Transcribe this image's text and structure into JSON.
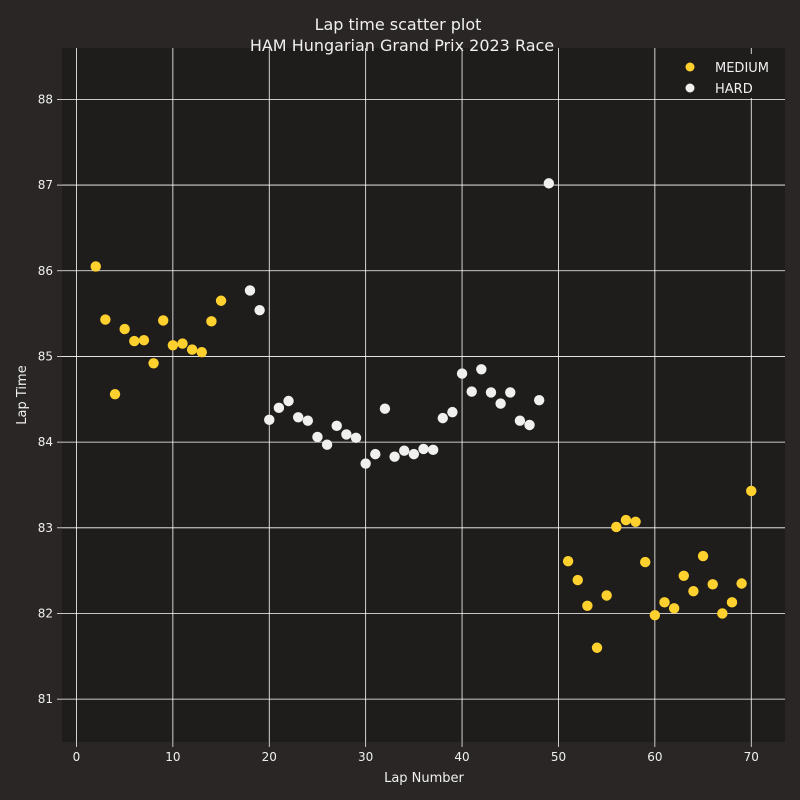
{
  "colors": {
    "figure_bg": "#292625",
    "plot_bg": "#1e1d1c",
    "medium": "#ffd12e",
    "hard": "#f0f0ee",
    "text": "#f0f0f0",
    "grid": "#ffffff"
  },
  "chart_data": {
    "type": "scatter",
    "title": "Lap time scatter plot",
    "subtitle": "HAM Hungarian Grand Prix 2023 Race",
    "xlabel": "Lap Number",
    "ylabel": "Lap Time",
    "xlim": [
      -1.5,
      73.5
    ],
    "ylim": [
      80.5,
      88.6
    ],
    "xticks": [
      0,
      10,
      20,
      30,
      40,
      50,
      60,
      70
    ],
    "yticks": [
      81,
      82,
      83,
      84,
      85,
      86,
      87,
      88
    ],
    "grid": true,
    "legend_position": "top-right",
    "series": [
      {
        "name": "MEDIUM",
        "color": "#ffd12e",
        "x": [
          2,
          3,
          4,
          5,
          6,
          7,
          8,
          9,
          10,
          11,
          12,
          13,
          14,
          15,
          51,
          52,
          53,
          54,
          55,
          56,
          57,
          58,
          59,
          60,
          61,
          62,
          63,
          64,
          65,
          66,
          67,
          68,
          69,
          70
        ],
        "y": [
          86.05,
          85.43,
          84.56,
          85.32,
          85.18,
          85.19,
          84.92,
          85.42,
          85.13,
          85.15,
          85.08,
          85.05,
          85.41,
          85.65,
          82.61,
          82.39,
          82.09,
          81.6,
          82.21,
          83.01,
          83.09,
          83.07,
          82.6,
          81.98,
          82.13,
          82.06,
          82.44,
          82.26,
          82.67,
          82.34,
          82.0,
          82.13,
          82.35,
          83.43
        ]
      },
      {
        "name": "HARD",
        "color": "#f0f0ee",
        "x": [
          18,
          19,
          20,
          21,
          22,
          23,
          24,
          25,
          26,
          27,
          28,
          29,
          30,
          31,
          32,
          33,
          34,
          35,
          36,
          37,
          38,
          39,
          40,
          41,
          42,
          43,
          44,
          45,
          46,
          47,
          48,
          49
        ],
        "y": [
          85.77,
          85.54,
          84.26,
          84.4,
          84.48,
          84.29,
          84.25,
          84.06,
          83.97,
          84.19,
          84.09,
          84.05,
          83.75,
          83.86,
          84.39,
          83.83,
          83.9,
          83.86,
          83.92,
          83.91,
          84.28,
          84.35,
          84.8,
          84.59,
          84.85,
          84.58,
          84.45,
          84.58,
          84.25,
          84.2,
          84.49,
          87.02
        ]
      }
    ]
  }
}
